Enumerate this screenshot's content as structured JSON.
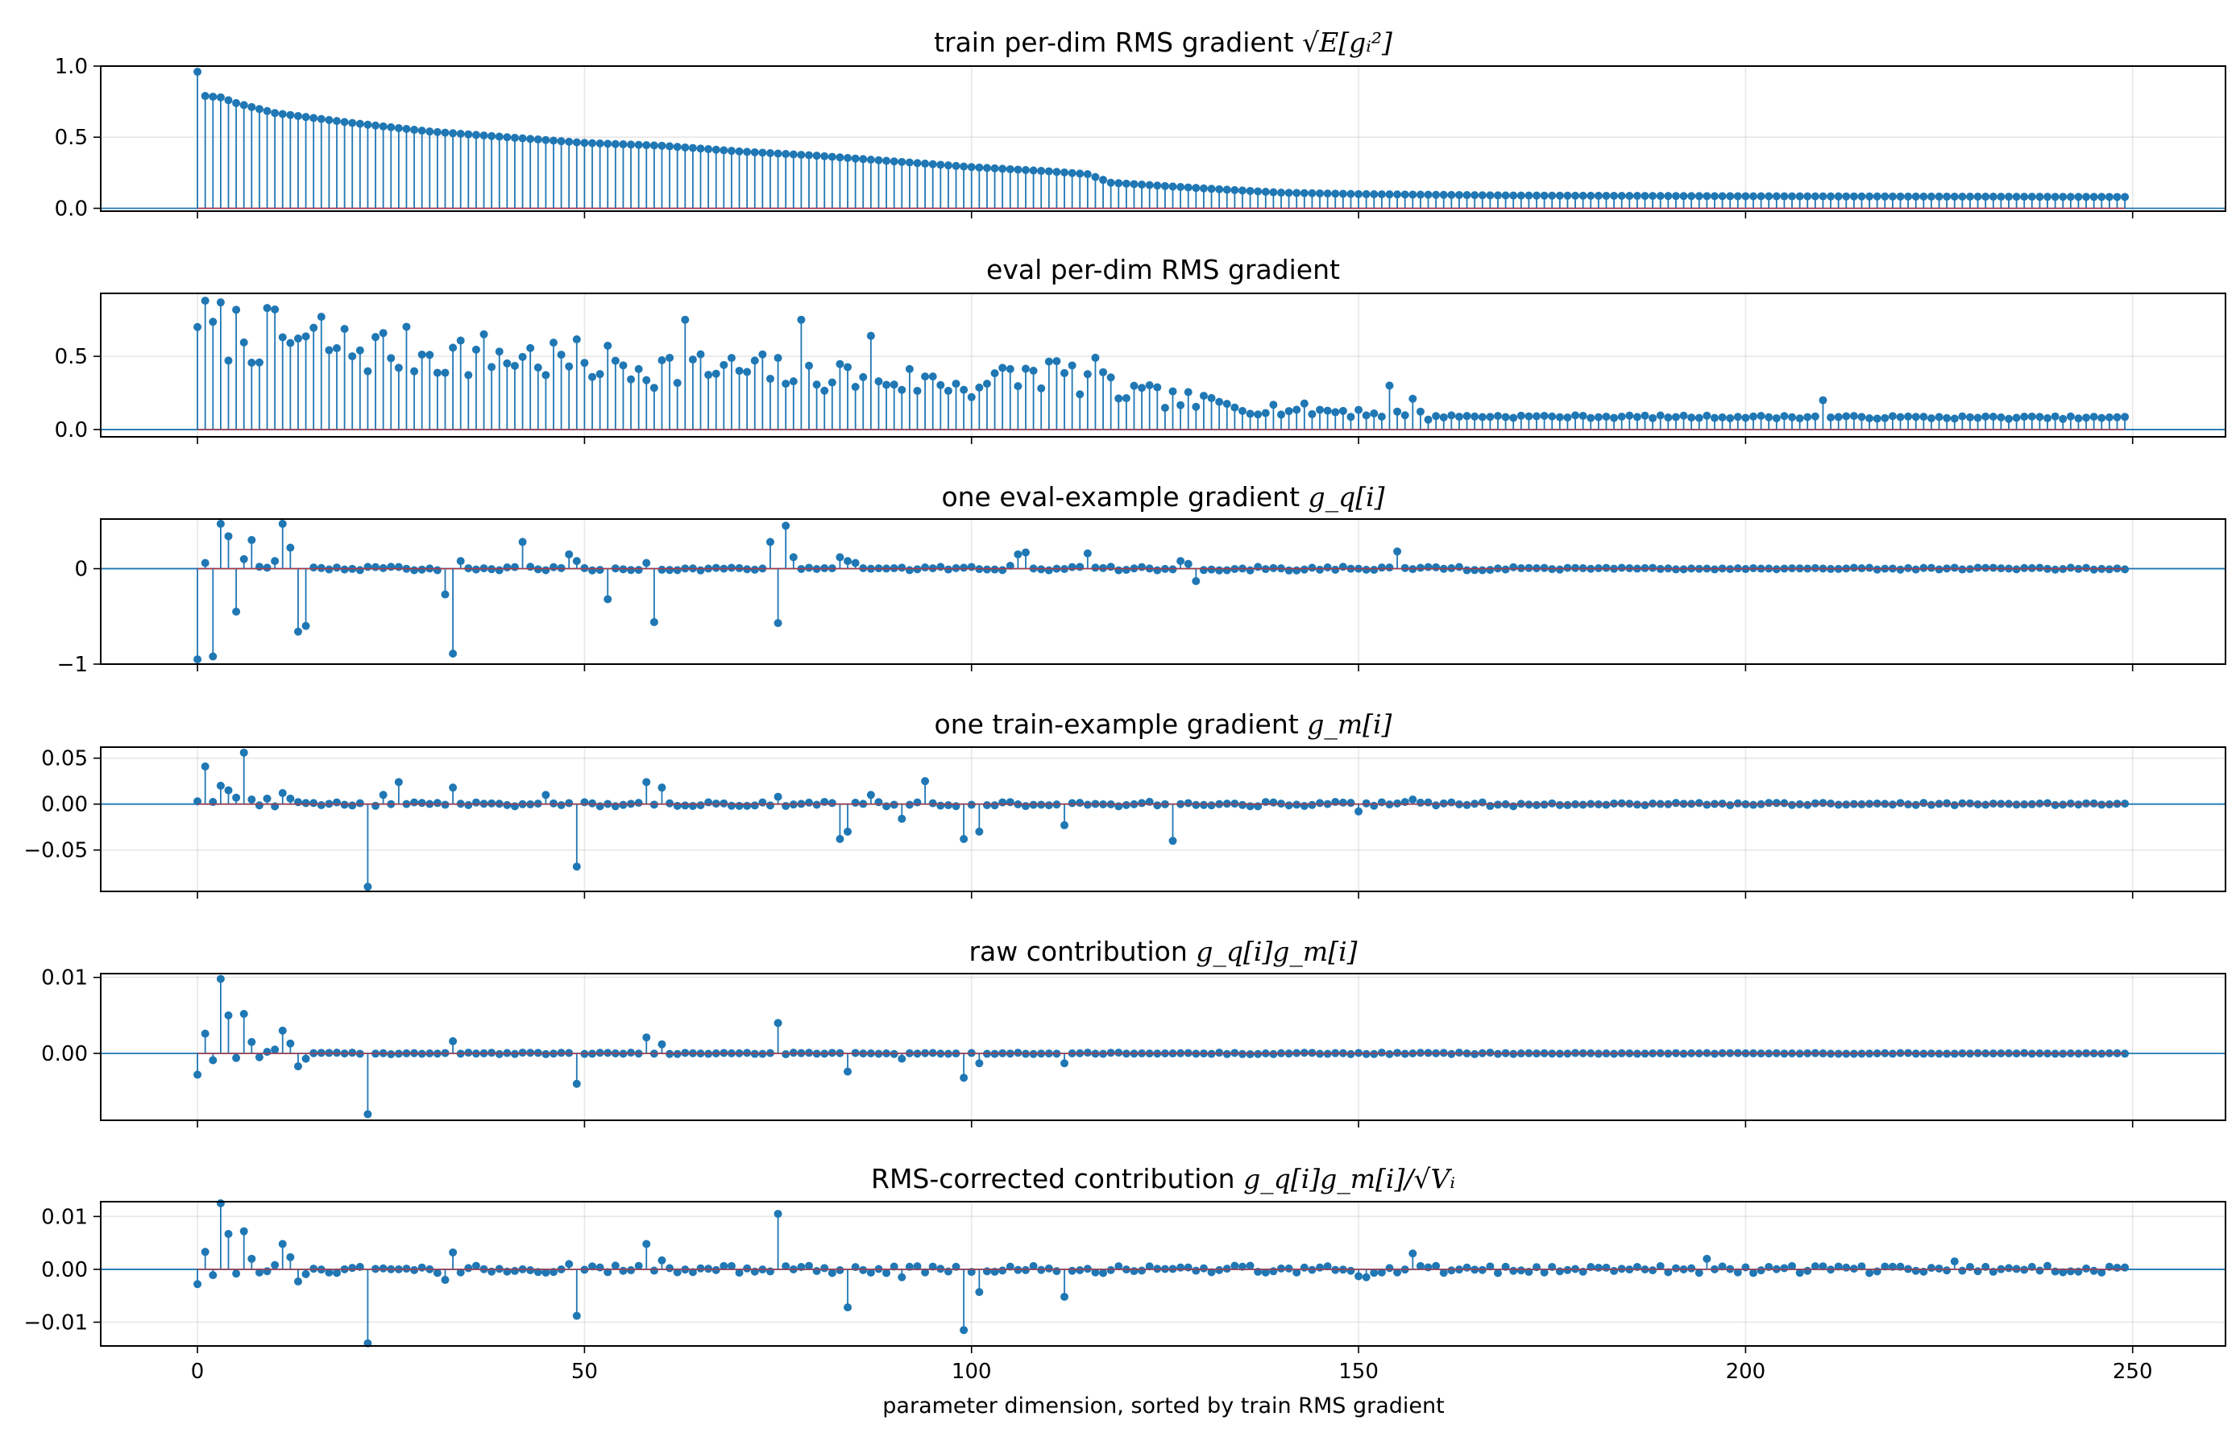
{
  "chart_data": [
    {
      "type": "stem",
      "title": "train per-dim RMS gradient  √E[gᵢ²]",
      "title_parts": {
        "plain": "train per-dim RMS gradient  ",
        "math": "√E[gᵢ²]"
      },
      "ylim": [
        -0.02,
        1.0
      ],
      "yticks": [
        0.0,
        0.5,
        1.0
      ],
      "ytick_labels": [
        "0.0",
        "0.5",
        "1.0"
      ],
      "grid": true,
      "profile": {
        "kind": "decay",
        "points": [
          [
            0,
            0.96
          ],
          [
            1,
            0.79
          ],
          [
            3,
            0.78
          ],
          [
            5,
            0.74
          ],
          [
            10,
            0.67
          ],
          [
            20,
            0.6
          ],
          [
            30,
            0.54
          ],
          [
            40,
            0.5
          ],
          [
            50,
            0.46
          ],
          [
            60,
            0.44
          ],
          [
            70,
            0.4
          ],
          [
            80,
            0.37
          ],
          [
            90,
            0.33
          ],
          [
            100,
            0.29
          ],
          [
            110,
            0.26
          ],
          [
            115,
            0.24
          ],
          [
            118,
            0.18
          ],
          [
            130,
            0.14
          ],
          [
            140,
            0.11
          ],
          [
            150,
            0.1
          ],
          [
            170,
            0.09
          ],
          [
            200,
            0.085
          ],
          [
            249,
            0.08
          ]
        ]
      }
    },
    {
      "type": "stem",
      "title": "eval per-dim RMS gradient",
      "title_parts": {
        "plain": "eval per-dim RMS gradient",
        "math": ""
      },
      "ylim": [
        -0.05,
        0.93
      ],
      "yticks": [
        0.0,
        0.5
      ],
      "ytick_labels": [
        "0.0",
        "0.5"
      ],
      "grid": true,
      "profile": {
        "kind": "noisy",
        "seed": 7,
        "points": [
          [
            0,
            0.7
          ],
          [
            20,
            0.55
          ],
          [
            40,
            0.5
          ],
          [
            60,
            0.42
          ],
          [
            80,
            0.38
          ],
          [
            100,
            0.3
          ],
          [
            110,
            0.4
          ],
          [
            120,
            0.25
          ],
          [
            130,
            0.18
          ],
          [
            140,
            0.14
          ],
          [
            150,
            0.12
          ],
          [
            160,
            0.09
          ],
          [
            249,
            0.08
          ]
        ],
        "spikes": [
          [
            0,
            0.7
          ],
          [
            1,
            0.88
          ],
          [
            9,
            0.83
          ],
          [
            16,
            0.77
          ],
          [
            63,
            0.75
          ],
          [
            78,
            0.75
          ],
          [
            87,
            0.64
          ],
          [
            116,
            0.49
          ],
          [
            154,
            0.3
          ],
          [
            157,
            0.21
          ],
          [
            210,
            0.2
          ]
        ]
      }
    },
    {
      "type": "stem",
      "title": "one eval-example gradient  g_q[i]",
      "title_parts": {
        "plain": "one eval-example gradient  ",
        "math": "g_q[i]"
      },
      "ylim": [
        -1.0,
        0.52
      ],
      "yticks": [
        -1,
        0
      ],
      "ytick_labels": [
        "−1",
        "0"
      ],
      "grid": true,
      "values_sparse": [
        [
          0,
          -0.95
        ],
        [
          1,
          0.06
        ],
        [
          2,
          -0.92
        ],
        [
          3,
          0.47
        ],
        [
          4,
          0.34
        ],
        [
          5,
          -0.45
        ],
        [
          6,
          0.1
        ],
        [
          7,
          0.3
        ],
        [
          8,
          0.02
        ],
        [
          9,
          0.01
        ],
        [
          10,
          0.08
        ],
        [
          11,
          0.47
        ],
        [
          12,
          0.22
        ],
        [
          13,
          -0.66
        ],
        [
          14,
          -0.6
        ],
        [
          32,
          -0.27
        ],
        [
          33,
          -0.89
        ],
        [
          34,
          0.08
        ],
        [
          42,
          0.28
        ],
        [
          48,
          0.15
        ],
        [
          49,
          0.08
        ],
        [
          53,
          -0.32
        ],
        [
          59,
          -0.56
        ],
        [
          58,
          0.06
        ],
        [
          74,
          0.28
        ],
        [
          75,
          -0.57
        ],
        [
          76,
          0.45
        ],
        [
          77,
          0.12
        ],
        [
          83,
          0.12
        ],
        [
          84,
          0.08
        ],
        [
          85,
          0.06
        ],
        [
          105,
          0.03
        ],
        [
          106,
          0.15
        ],
        [
          107,
          0.17
        ],
        [
          115,
          0.16
        ],
        [
          127,
          0.08
        ],
        [
          128,
          0.05
        ],
        [
          129,
          -0.13
        ],
        [
          155,
          0.18
        ]
      ],
      "noise": 0.02
    },
    {
      "type": "stem",
      "title": "one train-example gradient  g_m[i]",
      "title_parts": {
        "plain": "one train-example gradient  ",
        "math": "g_m[i]"
      },
      "ylim": [
        -0.095,
        0.062
      ],
      "yticks": [
        -0.05,
        0.0,
        0.05
      ],
      "ytick_labels": [
        "−0.05",
        "0.00",
        "0.05"
      ],
      "grid": true,
      "values_sparse": [
        [
          0,
          0.003
        ],
        [
          1,
          0.041
        ],
        [
          3,
          0.02
        ],
        [
          4,
          0.015
        ],
        [
          5,
          0.007
        ],
        [
          6,
          0.056
        ],
        [
          7,
          0.005
        ],
        [
          9,
          0.006
        ],
        [
          11,
          0.012
        ],
        [
          12,
          0.006
        ],
        [
          22,
          -0.09
        ],
        [
          24,
          0.01
        ],
        [
          26,
          0.024
        ],
        [
          33,
          0.018
        ],
        [
          45,
          0.01
        ],
        [
          49,
          -0.068
        ],
        [
          58,
          0.024
        ],
        [
          60,
          0.018
        ],
        [
          75,
          0.008
        ],
        [
          83,
          -0.038
        ],
        [
          84,
          -0.03
        ],
        [
          87,
          0.01
        ],
        [
          91,
          -0.016
        ],
        [
          94,
          0.025
        ],
        [
          99,
          -0.038
        ],
        [
          101,
          -0.03
        ],
        [
          112,
          -0.023
        ],
        [
          126,
          -0.04
        ],
        [
          150,
          -0.008
        ],
        [
          157,
          0.005
        ]
      ],
      "noise": 0.0025
    },
    {
      "type": "stem",
      "title": "raw contribution  g_q[i]g_m[i]",
      "title_parts": {
        "plain": "raw contribution  ",
        "math": "g_q[i]g_m[i]"
      },
      "ylim": [
        -0.0088,
        0.0105
      ],
      "yticks": [
        0.0,
        0.01
      ],
      "ytick_labels": [
        "0.00",
        "0.01"
      ],
      "grid": true,
      "values_sparse": [
        [
          0,
          -0.0028
        ],
        [
          1,
          0.0026
        ],
        [
          2,
          -0.0009
        ],
        [
          3,
          0.0098
        ],
        [
          4,
          0.005
        ],
        [
          5,
          -0.0006
        ],
        [
          6,
          0.0052
        ],
        [
          7,
          0.0015
        ],
        [
          8,
          -0.0005
        ],
        [
          9,
          0.0002
        ],
        [
          10,
          0.0005
        ],
        [
          11,
          0.003
        ],
        [
          12,
          0.0013
        ],
        [
          13,
          -0.0017
        ],
        [
          14,
          -0.0007
        ],
        [
          22,
          -0.008
        ],
        [
          33,
          0.0016
        ],
        [
          49,
          -0.004
        ],
        [
          58,
          0.0021
        ],
        [
          60,
          0.0012
        ],
        [
          75,
          0.004
        ],
        [
          84,
          -0.0024
        ],
        [
          91,
          -0.0007
        ],
        [
          99,
          -0.0032
        ],
        [
          101,
          -0.0013
        ],
        [
          112,
          -0.0013
        ]
      ],
      "noise": 0.0001
    },
    {
      "type": "stem",
      "title": "RMS-corrected contribution  g_q[i]g_m[i]/√Vᵢ",
      "title_parts": {
        "plain": "RMS-corrected contribution  ",
        "math": "g_q[i]g_m[i]/√Vᵢ"
      },
      "ylim": [
        -0.0145,
        0.0128
      ],
      "yticks": [
        -0.01,
        0.0,
        0.01
      ],
      "ytick_labels": [
        "−0.01",
        "0.00",
        "0.01"
      ],
      "grid": true,
      "xticks": [
        0,
        50,
        100,
        150,
        200,
        250
      ],
      "xtick_labels": [
        "0",
        "50",
        "100",
        "150",
        "200",
        "250"
      ],
      "xlabel": "parameter dimension, sorted by train RMS gradient",
      "values_sparse": [
        [
          0,
          -0.0028
        ],
        [
          1,
          0.0033
        ],
        [
          2,
          -0.0011
        ],
        [
          3,
          0.0125
        ],
        [
          4,
          0.0067
        ],
        [
          5,
          -0.0008
        ],
        [
          6,
          0.0072
        ],
        [
          7,
          0.002
        ],
        [
          8,
          -0.0006
        ],
        [
          10,
          0.0008
        ],
        [
          11,
          0.0048
        ],
        [
          12,
          0.0023
        ],
        [
          13,
          -0.0023
        ],
        [
          14,
          -0.0009
        ],
        [
          22,
          -0.014
        ],
        [
          32,
          -0.002
        ],
        [
          33,
          0.0032
        ],
        [
          49,
          -0.0088
        ],
        [
          48,
          0.001
        ],
        [
          58,
          0.0048
        ],
        [
          60,
          0.0017
        ],
        [
          75,
          0.0105
        ],
        [
          84,
          -0.0072
        ],
        [
          91,
          -0.0015
        ],
        [
          99,
          -0.0115
        ],
        [
          101,
          -0.0043
        ],
        [
          112,
          -0.0052
        ],
        [
          150,
          -0.0013
        ],
        [
          151,
          -0.0015
        ],
        [
          157,
          0.003
        ],
        [
          195,
          0.002
        ],
        [
          227,
          0.0015
        ]
      ],
      "noise": 0.0007,
      "noise_tail": true
    }
  ],
  "shared": {
    "x_count": 250,
    "xlim": [
      -12.5,
      262
    ],
    "xticks": [
      0,
      50,
      100,
      150,
      200,
      250
    ],
    "xlabel": "parameter dimension, sorted by train RMS gradient"
  }
}
